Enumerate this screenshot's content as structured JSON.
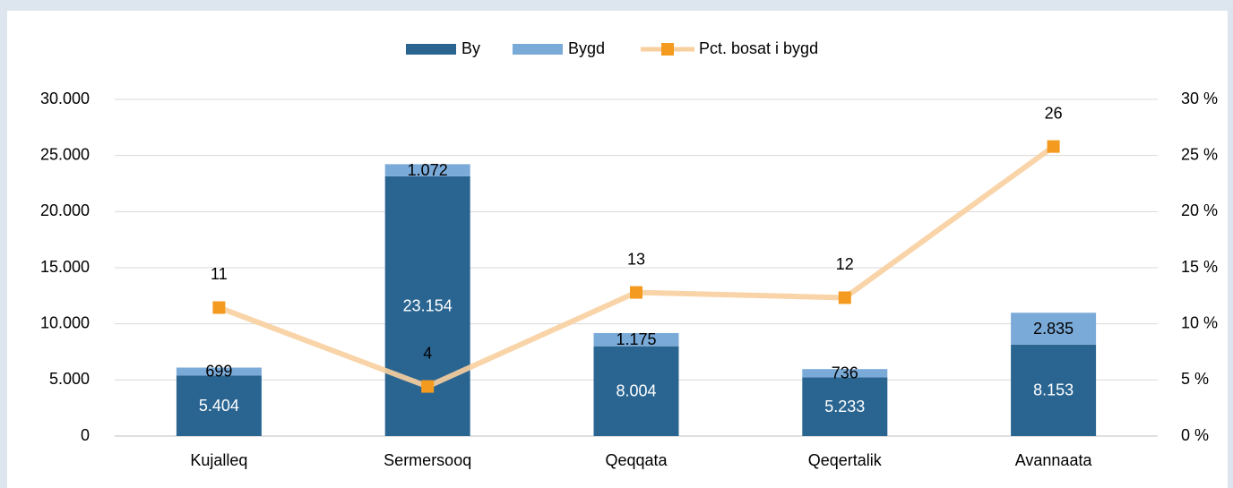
{
  "chart_data": {
    "type": "bar",
    "stacked": true,
    "grid": true,
    "legend": "top",
    "categories": [
      "Kujalleq",
      "Sermersooq",
      "Qeqqata",
      "Qeqertalik",
      "Avannaata"
    ],
    "series": [
      {
        "name": "By",
        "color": "#2a6592",
        "label_color": "#ffffff",
        "values": [
          5404,
          23154,
          8004,
          5233,
          8153
        ],
        "value_labels": [
          "5.404",
          "23.154",
          "8.004",
          "5.233",
          "8.153"
        ]
      },
      {
        "name": "Bygd",
        "color": "#7aaad8",
        "label_color": "#000000",
        "values": [
          699,
          1072,
          1175,
          736,
          2835
        ],
        "value_labels": [
          "699",
          "1.072",
          "1.175",
          "736",
          "2.835"
        ]
      },
      {
        "name": "Pct. bosat i bygd",
        "type": "line",
        "axis": "y2",
        "color": "#f8cf9e",
        "marker_color": "#f39a1f",
        "label_color": "#000000",
        "values": [
          11.45,
          4.42,
          12.8,
          12.33,
          25.8
        ],
        "value_labels": [
          "11",
          "4",
          "13",
          "12",
          "26"
        ]
      }
    ],
    "ylim": [
      0,
      30000
    ],
    "yticks": [
      0,
      {
        "value": 5000,
        "label": "5.000"
      },
      {
        "value": 10000,
        "label": "10.000"
      },
      {
        "value": 15000,
        "label": "15.000"
      },
      {
        "value": 20000,
        "label": "20.000"
      },
      {
        "value": 25000,
        "label": "25.000"
      },
      {
        "value": 30000,
        "label": "30.000"
      }
    ],
    "y2lim": [
      0,
      30
    ],
    "y2ticks": [
      {
        "value": 0,
        "label": "0 %"
      },
      {
        "value": 5,
        "label": "5 %"
      },
      {
        "value": 10,
        "label": "10 %"
      },
      {
        "value": 15,
        "label": "15 %"
      },
      {
        "value": 20,
        "label": "20 %"
      },
      {
        "value": 25,
        "label": "25 %"
      },
      {
        "value": 30,
        "label": "30 %"
      }
    ]
  }
}
